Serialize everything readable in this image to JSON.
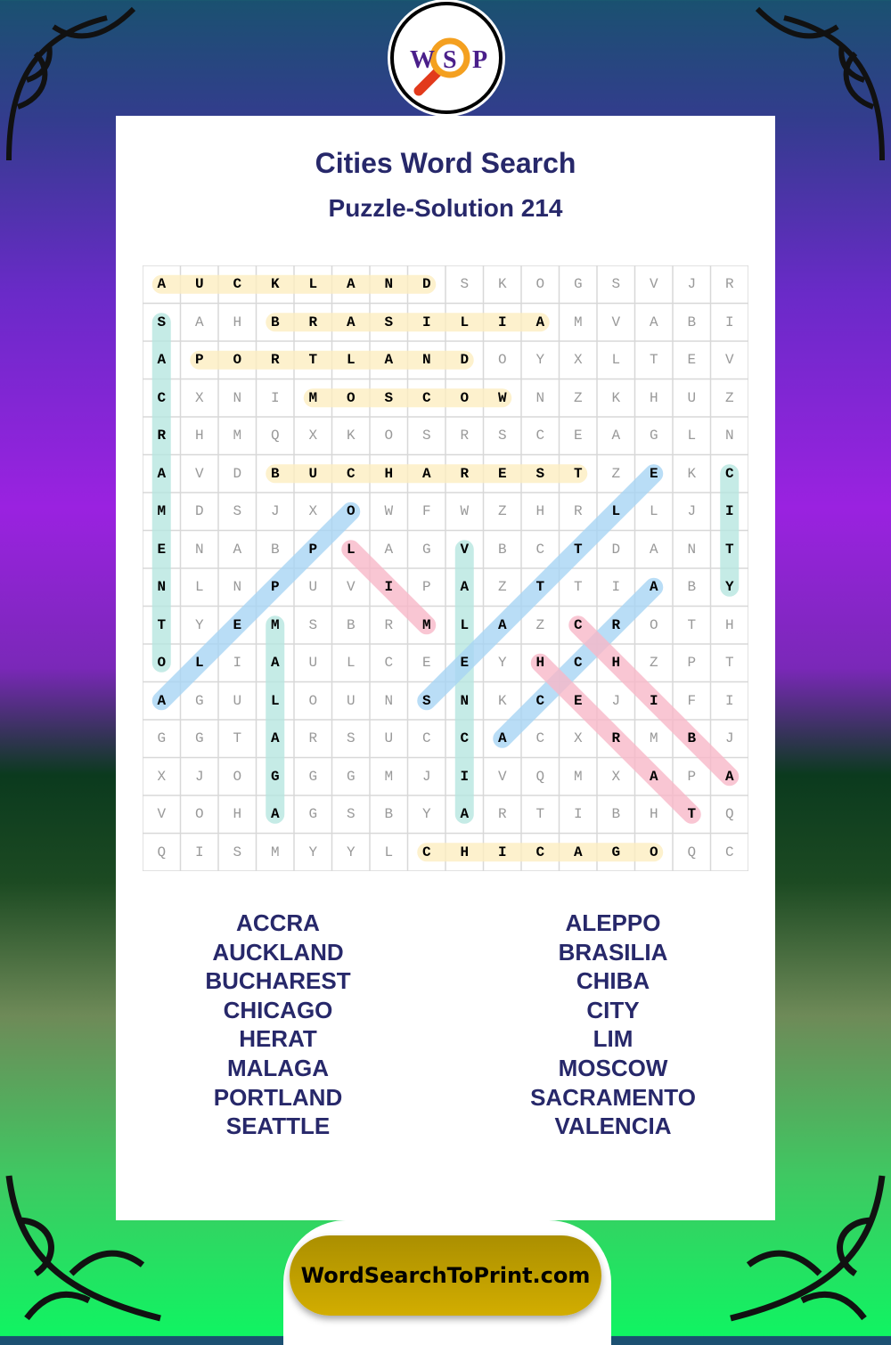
{
  "logo": {
    "letters": [
      "W",
      "S",
      "P"
    ],
    "icon": "magnifier-icon"
  },
  "header": {
    "title": "Cities Word Search",
    "subtitle": "Puzzle-Solution 214"
  },
  "grid": {
    "rows": [
      "AUCKLANDSKOGSVJR",
      "SAHBRASILIAMVABI",
      "APORTLANDOYXLTEV",
      "CXNIMOSCOWNZKHUZ",
      "RHMQXKOSRSCEAGLN",
      "AVDBUCHARESTZEKC",
      "MDSJXOWFWZHRLLJI",
      "ENABPLAGVBCTDANT",
      "NLNPUVIPAZTTIABY",
      "TYEMSBRMLAZCROTH",
      "OLIAULCEEYHCHZPT",
      "AGULOUNSNKCEJIFI",
      "GGTARSUCCACXRMBJ",
      "XJOGGGMJIVQMXAPA",
      "VOHAGSBYARTIBHTQ",
      "QISMYYLCHICAGOQC"
    ],
    "solutions": [
      {
        "word": "AUCKLAND",
        "from": [
          0,
          0
        ],
        "to": [
          0,
          7
        ],
        "color": "#fdeec0"
      },
      {
        "word": "BRASILIA",
        "from": [
          1,
          3
        ],
        "to": [
          1,
          10
        ],
        "color": "#fdeec0"
      },
      {
        "word": "PORTLAND",
        "from": [
          2,
          1
        ],
        "to": [
          2,
          8
        ],
        "color": "#fdeec0"
      },
      {
        "word": "MOSCOW",
        "from": [
          3,
          4
        ],
        "to": [
          3,
          9
        ],
        "color": "#fdeec0"
      },
      {
        "word": "BUCHAREST",
        "from": [
          5,
          3
        ],
        "to": [
          5,
          11
        ],
        "color": "#fdeec0"
      },
      {
        "word": "CHICAGO",
        "from": [
          15,
          7
        ],
        "to": [
          15,
          13
        ],
        "color": "#fdeec0"
      },
      {
        "word": "SACRAMENTO",
        "from": [
          1,
          0
        ],
        "to": [
          10,
          0
        ],
        "color": "#b6e6e0"
      },
      {
        "word": "CITY",
        "from": [
          5,
          15
        ],
        "to": [
          8,
          15
        ],
        "color": "#b6e6e0"
      },
      {
        "word": "VALENCIA",
        "from": [
          7,
          8
        ],
        "to": [
          14,
          8
        ],
        "color": "#b6e6e0"
      },
      {
        "word": "MALAGA",
        "from": [
          9,
          3
        ],
        "to": [
          14,
          3
        ],
        "color": "#b6e6e0"
      },
      {
        "word": "ALEPPO",
        "from": [
          11,
          0
        ],
        "to": [
          6,
          5
        ],
        "color": "#a8d4f4"
      },
      {
        "word": "SEATTLE",
        "from": [
          11,
          7
        ],
        "to": [
          5,
          13
        ],
        "color": "#a8d4f4"
      },
      {
        "word": "ACCRA",
        "from": [
          12,
          9
        ],
        "to": [
          8,
          13
        ],
        "color": "#a8d4f4"
      },
      {
        "word": "LIM",
        "from": [
          7,
          5
        ],
        "to": [
          9,
          7
        ],
        "color": "#f8b8c8"
      },
      {
        "word": "HERAT",
        "from": [
          10,
          10
        ],
        "to": [
          14,
          14
        ],
        "color": "#f8b8c8"
      },
      {
        "word": "CHIBA",
        "from": [
          9,
          11
        ],
        "to": [
          13,
          15
        ],
        "color": "#f8b8c8"
      }
    ]
  },
  "word_list": {
    "left": [
      "ACCRA",
      "AUCKLAND",
      "BUCHAREST",
      "CHICAGO",
      "HERAT",
      "MALAGA",
      "PORTLAND",
      "SEATTLE"
    ],
    "right": [
      "ALEPPO",
      "BRASILIA",
      "CHIBA",
      "CITY",
      "LIM",
      "MOSCOW",
      "SACRAMENTO",
      "VALENCIA"
    ]
  },
  "footer": {
    "site": "WordSearchToPrint.com"
  }
}
